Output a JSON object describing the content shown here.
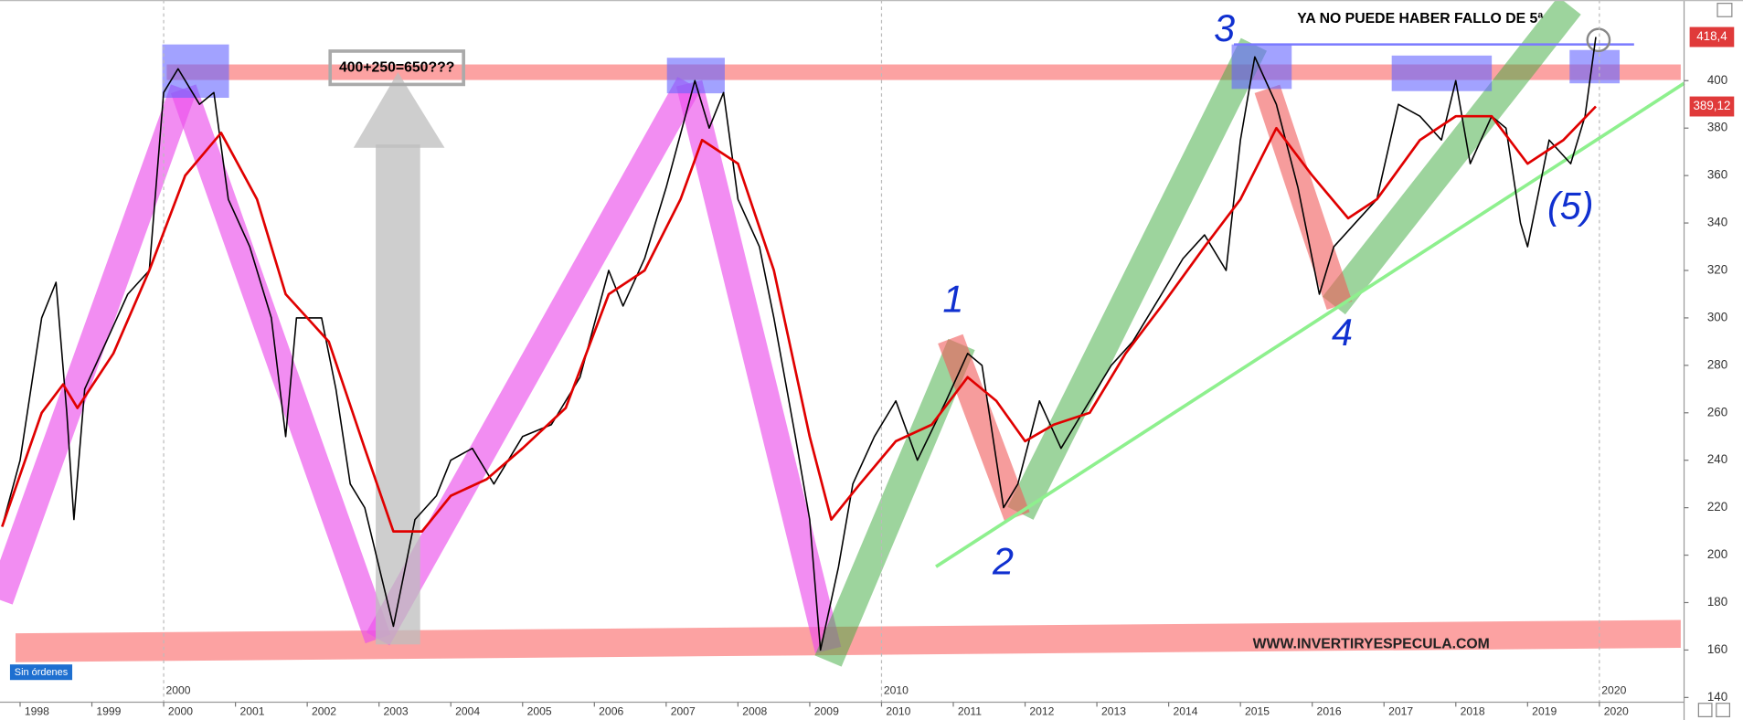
{
  "chart_data": {
    "type": "line",
    "title": "YA NO PUEDE HABER FALLO DE 5ª",
    "annotations": [
      "400+250=650???",
      "WWW.INVERTIRYESPECULA.COM",
      "Sin órdenes"
    ],
    "wave_labels": [
      "1",
      "2",
      "3",
      "4",
      "(5)"
    ],
    "xlim": [
      1997.72,
      2021.18
    ],
    "ylim": [
      138,
      434
    ],
    "xticks": [
      1998,
      1999,
      2000,
      2001,
      2002,
      2003,
      2004,
      2005,
      2006,
      2007,
      2008,
      2009,
      2010,
      2011,
      2012,
      2013,
      2014,
      2015,
      2016,
      2017,
      2018,
      2019,
      2020
    ],
    "decade_ticks": [
      2000,
      2010,
      2020
    ],
    "yticks": [
      140,
      160,
      180,
      200,
      220,
      240,
      260,
      280,
      300,
      320,
      340,
      360,
      380,
      400
    ],
    "series": [
      {
        "color": "#000000",
        "x": [
          1997.75,
          1998.0,
          1998.3,
          1998.5,
          1998.65,
          1998.75,
          1998.9,
          1999.2,
          1999.5,
          1999.8,
          2000.0,
          2000.2,
          2000.5,
          2000.7,
          2000.9,
          2001.2,
          2001.5,
          2001.7,
          2001.85,
          2002.2,
          2002.4,
          2002.6,
          2002.8,
          2003.0,
          2003.2,
          2003.5,
          2003.8,
          2004.0,
          2004.3,
          2004.6,
          2005.0,
          2005.4,
          2005.8,
          2006.2,
          2006.4,
          2006.7,
          2007.0,
          2007.4,
          2007.6,
          2007.8,
          2008.0,
          2008.3,
          2008.5,
          2008.8,
          2009.0,
          2009.15,
          2009.4,
          2009.6,
          2009.9,
          2010.2,
          2010.5,
          2010.9,
          2011.2,
          2011.4,
          2011.7,
          2011.9,
          2012.2,
          2012.5,
          2012.8,
          2013.2,
          2013.5,
          2013.9,
          2014.2,
          2014.5,
          2014.8,
          2015.0,
          2015.2,
          2015.5,
          2015.8,
          2016.1,
          2016.3,
          2016.6,
          2016.9,
          2017.2,
          2017.5,
          2017.8,
          2018.0,
          2018.2,
          2018.5,
          2018.7,
          2018.9,
          2019.0,
          2019.3,
          2019.6,
          2019.8,
          2019.95
        ],
        "values": [
          212,
          240,
          300,
          315,
          260,
          215,
          270,
          290,
          310,
          320,
          395,
          405,
          390,
          395,
          350,
          330,
          300,
          250,
          300,
          300,
          270,
          230,
          220,
          195,
          170,
          215,
          225,
          240,
          245,
          230,
          250,
          255,
          275,
          320,
          305,
          325,
          355,
          400,
          380,
          395,
          350,
          330,
          300,
          250,
          215,
          160,
          195,
          230,
          250,
          265,
          240,
          265,
          285,
          280,
          220,
          230,
          265,
          245,
          260,
          280,
          290,
          310,
          325,
          335,
          320,
          375,
          410,
          390,
          355,
          310,
          330,
          340,
          350,
          390,
          385,
          375,
          400,
          365,
          385,
          380,
          340,
          330,
          375,
          365,
          385,
          418.4
        ]
      },
      {
        "color": "#e00000",
        "x": [
          1997.75,
          1998.3,
          1998.6,
          1998.8,
          1999.3,
          1999.8,
          2000.3,
          2000.8,
          2001.3,
          2001.7,
          2002.0,
          2002.3,
          2002.8,
          2003.2,
          2003.6,
          2004.0,
          2004.5,
          2005.0,
          2005.6,
          2006.2,
          2006.7,
          2007.2,
          2007.5,
          2008.0,
          2008.5,
          2009.0,
          2009.3,
          2009.7,
          2010.2,
          2010.7,
          2011.2,
          2011.6,
          2012.0,
          2012.4,
          2012.9,
          2013.4,
          2013.9,
          2014.5,
          2015.0,
          2015.5,
          2016.0,
          2016.5,
          2016.9,
          2017.5,
          2018.0,
          2018.5,
          2019.0,
          2019.5,
          2019.95
        ],
        "values": [
          212,
          260,
          272,
          262,
          285,
          320,
          360,
          378,
          350,
          310,
          300,
          290,
          245,
          210,
          210,
          225,
          232,
          245,
          262,
          310,
          320,
          350,
          375,
          365,
          320,
          250,
          215,
          230,
          248,
          255,
          275,
          265,
          248,
          255,
          260,
          285,
          305,
          330,
          350,
          380,
          360,
          342,
          350,
          375,
          385,
          385,
          365,
          375,
          389.12
        ]
      }
    ],
    "price_tags": [
      {
        "value": 418.4,
        "label": "418,4",
        "color": "#e03a3a"
      },
      {
        "value": 389.12,
        "label": "389,12",
        "color": "#e03a3a"
      }
    ]
  }
}
